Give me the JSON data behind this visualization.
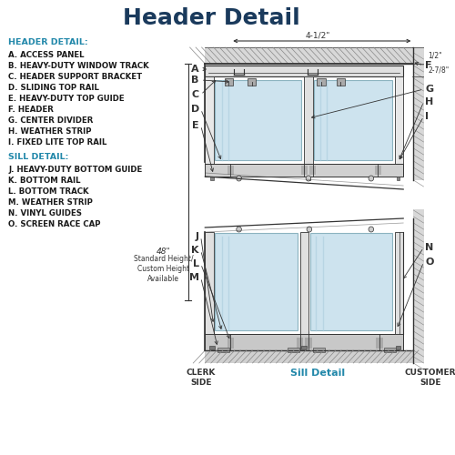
{
  "title": "Header Detail",
  "title_color": "#1a3a5c",
  "title_fontsize": 18,
  "background_color": "#ffffff",
  "header_label": "HEADER DETAIL:",
  "sill_label": "SILL DETAIL:",
  "label_color": "#2288aa",
  "text_color": "#1a1a1a",
  "header_items": [
    "A. ACCESS PANEL",
    "B. HEAVY-DUTY WINDOW TRACK",
    "C. HEADER SUPPORT BRACKET",
    "D. SLIDING TOP RAIL",
    "E. HEAVY-DUTY TOP GUIDE",
    "F. HEADER",
    "G. CENTER DIVIDER",
    "H. WEATHER STRIP",
    "I. FIXED LITE TOP RAIL"
  ],
  "sill_items": [
    "J. HEAVY-DUTY BOTTOM GUIDE",
    "K. BOTTOM RAIL",
    "L. BOTTOM TRACK",
    "M. WEATHER STRIP",
    "N. VINYL GUIDES",
    "O. SCREEN RACE CAP"
  ],
  "dimension_4_5": "4-1/2\"",
  "dimension_half": "1/2\"",
  "dimension_2_7_8": "2-7/8\"",
  "dimension_48": "48\"",
  "dim_note": "Standard Height/\nCustom Height\nAvailable",
  "clerk_side": "CLERK\nSIDE",
  "customer_side": "CUSTOMER\nSIDE",
  "sill_detail": "Sill Detail",
  "diagram_color": "#333333",
  "glass_color": "#b8d8e8",
  "fill_gray": "#cccccc",
  "fill_dark": "#999999",
  "teal_color": "#2288aa"
}
